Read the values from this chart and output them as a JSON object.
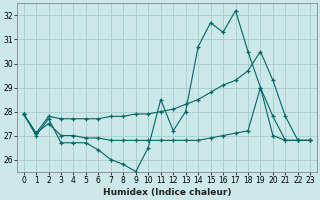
{
  "xlabel": "Humidex (Indice chaleur)",
  "bg_color": "#cce8e8",
  "grid_color": "#aacccc",
  "line_color": "#006666",
  "xlim": [
    -0.5,
    23.5
  ],
  "ylim": [
    25.5,
    32.5
  ],
  "yticks": [
    26,
    27,
    28,
    29,
    30,
    31,
    32
  ],
  "xticks": [
    0,
    1,
    2,
    3,
    4,
    5,
    6,
    7,
    8,
    9,
    10,
    11,
    12,
    13,
    14,
    15,
    16,
    17,
    18,
    19,
    20,
    21,
    22,
    23
  ],
  "series1_x": [
    0,
    1,
    2,
    3,
    4,
    5,
    6,
    7,
    8,
    9,
    10,
    11,
    12,
    13,
    14,
    15,
    16,
    17,
    18,
    19,
    20,
    21,
    22,
    23
  ],
  "series1_y": [
    27.9,
    27.0,
    27.7,
    26.7,
    26.7,
    26.7,
    26.4,
    26.0,
    25.8,
    25.5,
    26.5,
    28.5,
    27.2,
    28.0,
    30.7,
    31.7,
    31.3,
    32.2,
    30.5,
    29.0,
    27.8,
    26.8,
    26.8,
    26.8
  ],
  "series2_x": [
    0,
    1,
    2,
    3,
    4,
    5,
    6,
    7,
    8,
    9,
    10,
    11,
    12,
    13,
    14,
    15,
    16,
    17,
    18,
    19,
    20,
    21,
    22,
    23
  ],
  "series2_y": [
    27.9,
    27.1,
    27.8,
    27.7,
    27.7,
    27.7,
    27.7,
    27.8,
    27.8,
    27.9,
    27.9,
    28.0,
    28.1,
    28.3,
    28.5,
    28.8,
    29.1,
    29.3,
    29.7,
    30.5,
    29.3,
    27.8,
    26.8,
    26.8
  ],
  "series3_x": [
    0,
    1,
    2,
    3,
    4,
    5,
    6,
    7,
    8,
    9,
    10,
    11,
    12,
    13,
    14,
    15,
    16,
    17,
    18,
    19,
    20,
    21,
    22,
    23
  ],
  "series3_y": [
    27.9,
    27.1,
    27.5,
    27.0,
    27.0,
    26.9,
    26.9,
    26.8,
    26.8,
    26.8,
    26.8,
    26.8,
    26.8,
    26.8,
    26.8,
    26.9,
    27.0,
    27.1,
    27.2,
    29.0,
    27.0,
    26.8,
    26.8,
    26.8
  ]
}
